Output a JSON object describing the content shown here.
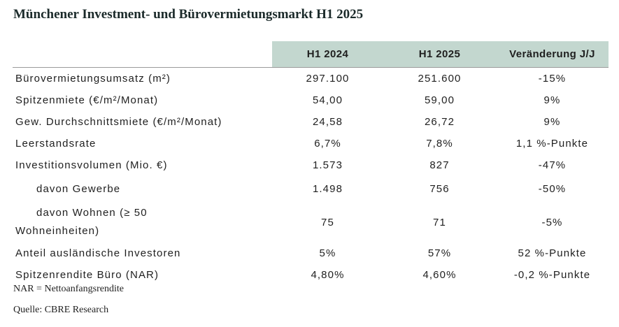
{
  "title": "Münchener Investment- und Bürovermietungsmarkt H1 2025",
  "table": {
    "headers": [
      "",
      "H1 2024",
      "H1 2025",
      "Veränderung J/J"
    ],
    "rows": [
      {
        "label": "Bürovermietungsumsatz (m²)",
        "h1_2024": "297.100",
        "h1_2025": "251.600",
        "change": "-15%"
      },
      {
        "label": "Spitzenmiete (€/m²/Monat)",
        "h1_2024": "54,00",
        "h1_2025": "59,00",
        "change": "9%"
      },
      {
        "label": "Gew. Durchschnittsmiete (€/m²/Monat)",
        "h1_2024": "24,58",
        "h1_2025": "26,72",
        "change": "9%"
      },
      {
        "label": "Leerstandsrate",
        "h1_2024": "6,7%",
        "h1_2025": "7,8%",
        "change": "1,1 %-Punkte"
      },
      {
        "label": "Investitionsvolumen (Mio. €)",
        "h1_2024": "1.573",
        "h1_2025": "827",
        "change": "-47%"
      },
      {
        "label": "davon Gewerbe",
        "h1_2024": "1.498",
        "h1_2025": "756",
        "change": "-50%"
      },
      {
        "label_line1": "davon Wohnen (≥ 50",
        "label_line2": "Wohneinheiten)",
        "h1_2024": "75",
        "h1_2025": "71",
        "change": "-5%"
      },
      {
        "label": "Anteil ausländische Investoren",
        "h1_2024": "5%",
        "h1_2025": "57%",
        "change": "52 %-Punkte"
      },
      {
        "label": "Spitzenrendite Büro (NAR)",
        "h1_2024": "4,80%",
        "h1_2025": "4,60%",
        "change": "-0,2 %-Punkte"
      }
    ]
  },
  "footnote": "NAR = Nettoanfangsrendite",
  "source": "Quelle: CBRE Research",
  "colors": {
    "header_background": "#c3d7cf",
    "title_text": "#1b2a2a",
    "body_text": "#1f1f1f"
  }
}
